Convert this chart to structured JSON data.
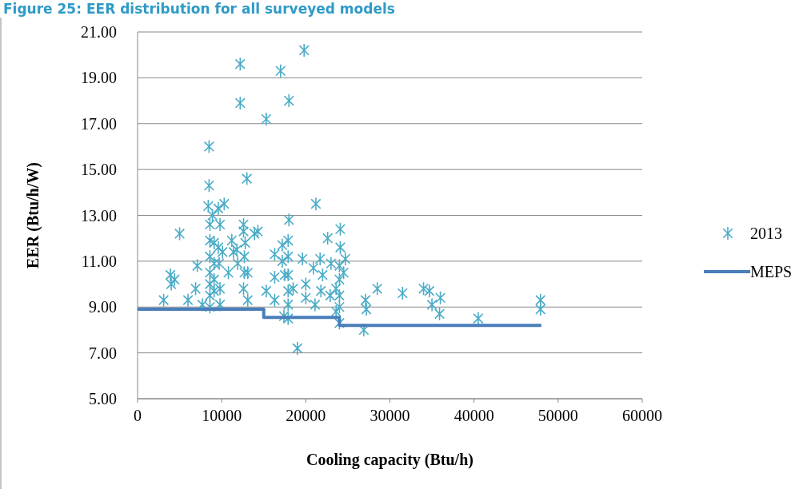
{
  "chart_data": {
    "type": "scatter",
    "title": "Figure 25: EER distribution for all surveyed models",
    "xlabel": "Cooling capacity (Btu/h)",
    "ylabel": "EER (Btu/h/W)",
    "xlim": [
      0,
      60000
    ],
    "xticks": [
      0,
      10000,
      20000,
      30000,
      40000,
      50000,
      60000
    ],
    "ylim": [
      5,
      21
    ],
    "yticks": [
      {
        "value": 5,
        "label": "5.00"
      },
      {
        "value": 7,
        "label": "7.00"
      },
      {
        "value": 9,
        "label": "9.00"
      },
      {
        "value": 11,
        "label": "11.00"
      },
      {
        "value": 13,
        "label": "13.00"
      },
      {
        "value": 15,
        "label": "15.00"
      },
      {
        "value": 17,
        "label": "17.00"
      },
      {
        "value": 19,
        "label": "19.00"
      },
      {
        "value": 21,
        "label": "21.00"
      }
    ],
    "grid": "y",
    "legend": "right",
    "series": [
      {
        "name": "2013",
        "marker": "cross",
        "color": "#4bacc6",
        "x": [
          3100,
          3900,
          4400,
          4000,
          5000,
          6000,
          6900,
          7100,
          7700,
          8500,
          8500,
          8400,
          8600,
          8600,
          8600,
          8600,
          8600,
          8600,
          8600,
          8900,
          9100,
          9100,
          9100,
          9100,
          9600,
          9800,
          9600,
          9700,
          9800,
          9800,
          10300,
          10100,
          10800,
          11200,
          11400,
          11900,
          11800,
          12200,
          12200,
          12600,
          12600,
          12700,
          12700,
          12600,
          13100,
          13000,
          12800,
          13100,
          13900,
          14300,
          15300,
          15300,
          16300,
          16300,
          16300,
          17000,
          17200,
          17200,
          17500,
          17400,
          18000,
          18000,
          17900,
          17900,
          17900,
          17900,
          17900,
          17900,
          19000,
          19800,
          18500,
          19600,
          20000,
          20000,
          20900,
          21200,
          21100,
          21700,
          22000,
          21800,
          22600,
          23000,
          22900,
          23600,
          23600,
          24100,
          24100,
          24000,
          24000,
          24000,
          24000,
          24000,
          24500,
          24700,
          26900,
          27100,
          27200,
          28500,
          31500,
          34000,
          34700,
          35000,
          36000,
          35900,
          40500,
          47900,
          47900
        ],
        "values": [
          9.3,
          10.4,
          10.2,
          10.0,
          12.2,
          9.3,
          9.8,
          10.8,
          9.1,
          16.0,
          14.3,
          13.4,
          12.6,
          11.9,
          11.2,
          10.5,
          10.0,
          9.5,
          9.0,
          13.0,
          11.8,
          10.9,
          10.2,
          9.7,
          13.3,
          12.6,
          11.6,
          10.9,
          9.8,
          9.1,
          13.5,
          11.4,
          10.5,
          11.9,
          11.4,
          10.9,
          11.5,
          19.6,
          17.9,
          12.6,
          12.3,
          11.2,
          10.5,
          9.8,
          9.3,
          14.6,
          11.8,
          10.5,
          12.2,
          12.3,
          9.7,
          17.2,
          11.3,
          10.3,
          9.3,
          19.3,
          11.0,
          11.7,
          10.4,
          8.6,
          18.0,
          12.8,
          11.9,
          11.2,
          10.4,
          9.7,
          9.1,
          8.5,
          7.2,
          20.2,
          9.8,
          11.1,
          10.0,
          9.4,
          10.7,
          13.5,
          9.1,
          11.1,
          10.4,
          9.7,
          12.0,
          10.9,
          9.5,
          9.8,
          8.8,
          12.4,
          11.6,
          10.8,
          10.2,
          9.5,
          9.0,
          8.3,
          10.5,
          11.1,
          8.0,
          9.3,
          8.9,
          9.8,
          9.6,
          9.8,
          9.7,
          9.1,
          9.4,
          8.7,
          8.5,
          9.3,
          8.9
        ]
      },
      {
        "name": "MEPS",
        "type": "step",
        "marker": "none",
        "color": "#4a7ebb",
        "x": [
          0,
          15000,
          24000,
          48000
        ],
        "values": [
          8.9,
          8.55,
          8.2,
          8.2
        ]
      }
    ]
  }
}
